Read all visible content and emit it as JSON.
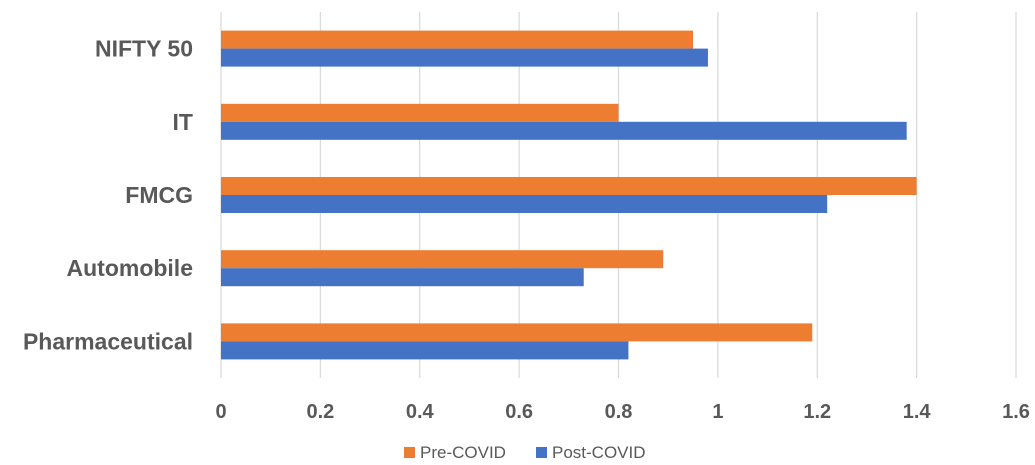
{
  "chart_data": {
    "type": "bar",
    "orientation": "horizontal",
    "categories": [
      "NIFTY 50",
      "IT",
      "FMCG",
      "Automobile",
      "Pharmaceutical"
    ],
    "series": [
      {
        "name": "Pre-COVID",
        "color": "#ED7D31",
        "values": [
          0.95,
          0.8,
          1.4,
          0.89,
          1.19
        ]
      },
      {
        "name": "Post-COVID",
        "color": "#4472C4",
        "values": [
          0.98,
          1.38,
          1.22,
          0.73,
          0.82
        ]
      }
    ],
    "xlim": [
      0,
      1.6
    ],
    "xticks": [
      "0",
      "0.2",
      "0.4",
      "0.6",
      "0.8",
      "1",
      "1.2",
      "1.4",
      "1.6"
    ],
    "grid": true,
    "legend_position": "bottom",
    "title": "",
    "xlabel": "",
    "ylabel": ""
  }
}
